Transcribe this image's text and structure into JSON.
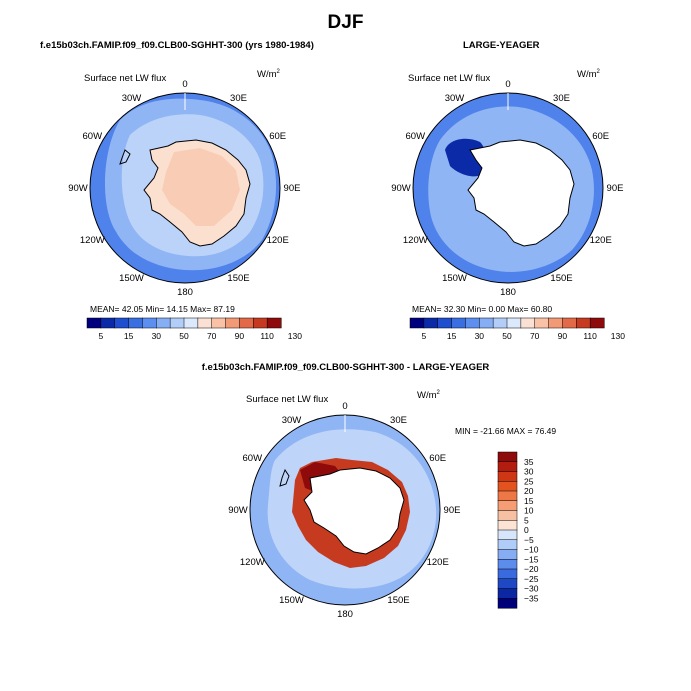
{
  "page_title": "DJF",
  "panels": [
    {
      "title": "f.e15b03ch.FAMIP.f09_f09.CLB00-SGHHT-300 (yrs 1980-1984)",
      "var_label": "Surface net LW flux",
      "units": "W/m",
      "units_sup": "2",
      "stats": "MEAN=  42.05   Min=  14.15   Max=  87.19",
      "colorbar_labels": [
        "5",
        "15",
        "30",
        "50",
        "70",
        "90",
        "110",
        "130"
      ]
    },
    {
      "title": "LARGE-YEAGER",
      "var_label": "Surface net LW flux",
      "units": "W/m",
      "units_sup": "2",
      "stats": "MEAN=  32.30   Min=   0.00   Max=  60.80",
      "colorbar_labels": [
        "5",
        "15",
        "30",
        "50",
        "70",
        "90",
        "110",
        "130"
      ]
    },
    {
      "title": "f.e15b03ch.FAMIP.f09_f09.CLB00-SGHHT-300 - LARGE-YEAGER",
      "var_label": "Surface net LW flux",
      "units": "W/m",
      "units_sup": "2",
      "stats": "MIN = -21.66  MAX =  76.49",
      "colorbar_labels": [
        "35",
        "30",
        "25",
        "20",
        "15",
        "10",
        "5",
        "0",
        "−5",
        "−10",
        "−15",
        "−20",
        "−25",
        "−30",
        "−35"
      ]
    }
  ],
  "lon_labels": [
    "0",
    "30E",
    "60E",
    "90E",
    "120E",
    "150E",
    "180",
    "150W",
    "120W",
    "90W",
    "60W",
    "30W"
  ],
  "colors": {
    "abs_scale": [
      "#00007f",
      "#0b2aa8",
      "#1f4fcf",
      "#3a6fe2",
      "#5c8ff0",
      "#86aef5",
      "#b3cdf9",
      "#dce8fc",
      "#fbe1d4",
      "#f9c2a7",
      "#f29a76",
      "#e36a48",
      "#c73a22",
      "#8f0b0b"
    ],
    "diff_scale": [
      "#8f0b0b",
      "#b31d10",
      "#cf3614",
      "#e2531f",
      "#ee7845",
      "#f59d74",
      "#f8c0a2",
      "#fce3d3",
      "#d8e6fb",
      "#b0ccf8",
      "#86adf4",
      "#5c8cec",
      "#3a6bde",
      "#1f49c4",
      "#0b27a2",
      "#00007a"
    ],
    "ocean_mid": "#4f82ea",
    "ocean_light": "#8fb5f5",
    "ocean_pale": "#bcd3f9",
    "ice": "#f9cdb5",
    "ice_light": "#fbe0d0",
    "continent_white": "#ffffff",
    "diff_base": "#bed4f9",
    "diff_red": "#c63b20"
  }
}
